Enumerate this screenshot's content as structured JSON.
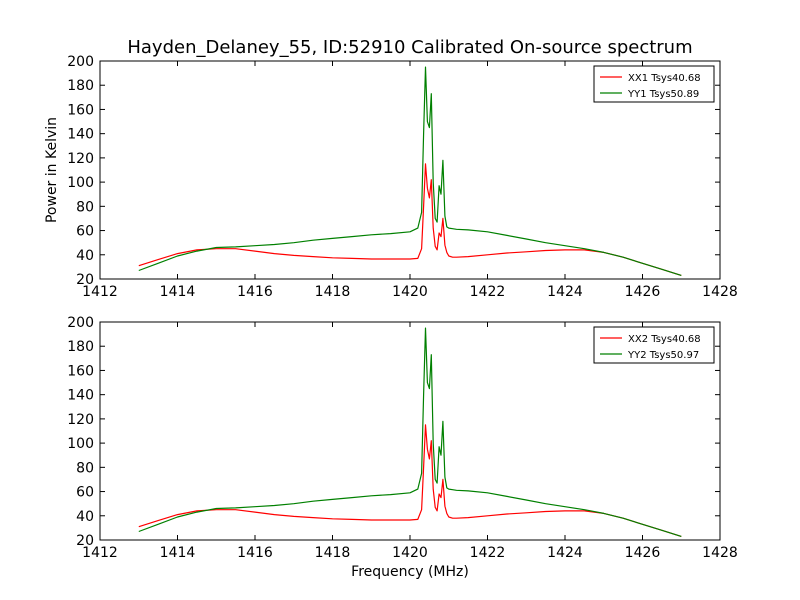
{
  "title": "Hayden_Delaney_55, ID:52910 Calibrated On-source spectrum",
  "xlabel": "Frequency (MHz)",
  "colors": {
    "xx": "#ff0000",
    "yy": "#008000",
    "axes": "#000000",
    "background": "#ffffff"
  },
  "chart_data": [
    {
      "type": "line",
      "title": "Hayden_Delaney_55, ID:52910 Calibrated On-source spectrum",
      "xlabel": "",
      "ylabel": "Power in Kelvin",
      "xlim": [
        1412,
        1428
      ],
      "ylim": [
        20,
        200
      ],
      "xticks": [
        1412,
        1414,
        1416,
        1418,
        1420,
        1422,
        1424,
        1426,
        1428
      ],
      "yticks": [
        20,
        40,
        60,
        80,
        100,
        120,
        140,
        160,
        180,
        200
      ],
      "grid": false,
      "legend_position": "top-right",
      "series": [
        {
          "name": "XX1 Tsys40.68",
          "color": "#ff0000",
          "x": [
            1413.0,
            1413.5,
            1414.0,
            1414.5,
            1415.0,
            1415.5,
            1416.0,
            1416.5,
            1417.0,
            1417.5,
            1418.0,
            1418.5,
            1419.0,
            1419.5,
            1420.0,
            1420.2,
            1420.3,
            1420.35,
            1420.4,
            1420.45,
            1420.5,
            1420.55,
            1420.6,
            1420.65,
            1420.7,
            1420.75,
            1420.8,
            1420.85,
            1420.9,
            1420.95,
            1421.0,
            1421.1,
            1421.2,
            1421.5,
            1422.0,
            1422.5,
            1423.0,
            1423.5,
            1424.0,
            1424.5,
            1425.0,
            1425.5,
            1426.0,
            1426.5,
            1427.0
          ],
          "y": [
            31,
            36,
            41,
            44,
            45,
            45,
            43,
            41,
            39.5,
            38.5,
            37.5,
            37,
            36.5,
            36.5,
            36.5,
            37,
            45,
            80,
            115,
            95,
            87,
            102,
            62,
            47,
            44,
            58,
            55,
            70,
            48,
            42,
            39,
            38,
            38,
            38.5,
            40,
            41.5,
            42.5,
            43.5,
            44,
            44,
            42,
            38,
            33,
            28,
            23
          ]
        },
        {
          "name": "YY1 Tsys50.89",
          "color": "#008000",
          "x": [
            1413.0,
            1413.5,
            1414.0,
            1414.5,
            1415.0,
            1415.5,
            1416.0,
            1416.5,
            1417.0,
            1417.5,
            1418.0,
            1418.5,
            1419.0,
            1419.5,
            1420.0,
            1420.2,
            1420.3,
            1420.35,
            1420.4,
            1420.45,
            1420.5,
            1420.55,
            1420.6,
            1420.65,
            1420.7,
            1420.75,
            1420.8,
            1420.85,
            1420.9,
            1420.95,
            1421.0,
            1421.1,
            1421.2,
            1421.5,
            1422.0,
            1422.5,
            1423.0,
            1423.5,
            1424.0,
            1424.5,
            1425.0,
            1425.5,
            1426.0,
            1426.5,
            1427.0
          ],
          "y": [
            27,
            33,
            39,
            43,
            46,
            46.5,
            47.5,
            48.5,
            50,
            52,
            53.5,
            55,
            56.5,
            57.5,
            59,
            62,
            75,
            140,
            195,
            150,
            145,
            173,
            100,
            70,
            67,
            97,
            90,
            118,
            72,
            63,
            62,
            61.5,
            61,
            60.5,
            59,
            56,
            53,
            50,
            47.5,
            45,
            42,
            38,
            33,
            28,
            23
          ]
        }
      ]
    },
    {
      "type": "line",
      "title": "",
      "xlabel": "Frequency (MHz)",
      "ylabel": "",
      "xlim": [
        1412,
        1428
      ],
      "ylim": [
        20,
        200
      ],
      "xticks": [
        1412,
        1414,
        1416,
        1418,
        1420,
        1422,
        1424,
        1426,
        1428
      ],
      "yticks": [
        20,
        40,
        60,
        80,
        100,
        120,
        140,
        160,
        180,
        200
      ],
      "grid": false,
      "legend_position": "top-right",
      "series": [
        {
          "name": "XX2 Tsys40.68",
          "color": "#ff0000",
          "x": [
            1413.0,
            1413.5,
            1414.0,
            1414.5,
            1415.0,
            1415.5,
            1416.0,
            1416.5,
            1417.0,
            1417.5,
            1418.0,
            1418.5,
            1419.0,
            1419.5,
            1420.0,
            1420.2,
            1420.3,
            1420.35,
            1420.4,
            1420.45,
            1420.5,
            1420.55,
            1420.6,
            1420.65,
            1420.7,
            1420.75,
            1420.8,
            1420.85,
            1420.9,
            1420.95,
            1421.0,
            1421.1,
            1421.2,
            1421.5,
            1422.0,
            1422.5,
            1423.0,
            1423.5,
            1424.0,
            1424.5,
            1425.0,
            1425.5,
            1426.0,
            1426.5,
            1427.0
          ],
          "y": [
            31,
            36,
            41,
            44,
            45,
            45,
            43,
            41,
            39.5,
            38.5,
            37.5,
            37,
            36.5,
            36.5,
            36.5,
            37,
            45,
            80,
            115,
            95,
            87,
            102,
            62,
            47,
            44,
            58,
            55,
            70,
            48,
            42,
            39,
            38,
            38,
            38.5,
            40,
            41.5,
            42.5,
            43.5,
            44,
            44,
            42,
            38,
            33,
            28,
            23
          ]
        },
        {
          "name": "YY2 Tsys50.97",
          "color": "#008000",
          "x": [
            1413.0,
            1413.5,
            1414.0,
            1414.5,
            1415.0,
            1415.5,
            1416.0,
            1416.5,
            1417.0,
            1417.5,
            1418.0,
            1418.5,
            1419.0,
            1419.5,
            1420.0,
            1420.2,
            1420.3,
            1420.35,
            1420.4,
            1420.45,
            1420.5,
            1420.55,
            1420.6,
            1420.65,
            1420.7,
            1420.75,
            1420.8,
            1420.85,
            1420.9,
            1420.95,
            1421.0,
            1421.1,
            1421.2,
            1421.5,
            1422.0,
            1422.5,
            1423.0,
            1423.5,
            1424.0,
            1424.5,
            1425.0,
            1425.5,
            1426.0,
            1426.5,
            1427.0
          ],
          "y": [
            27,
            33,
            39,
            43,
            46,
            46.5,
            47.5,
            48.5,
            50,
            52,
            53.5,
            55,
            56.5,
            57.5,
            59,
            62,
            75,
            140,
            195,
            150,
            145,
            173,
            100,
            70,
            67,
            97,
            90,
            118,
            72,
            63,
            62,
            61.5,
            61,
            60.5,
            59,
            56,
            53,
            50,
            47.5,
            45,
            42,
            38,
            33,
            28,
            23
          ]
        }
      ]
    }
  ]
}
